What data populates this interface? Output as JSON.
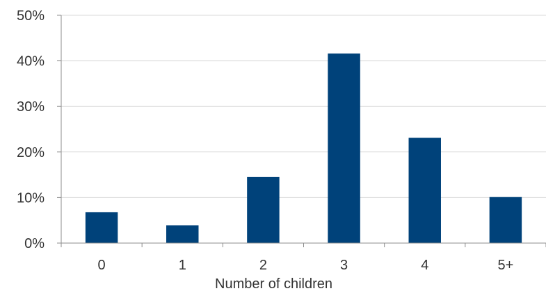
{
  "chart_data": {
    "type": "bar",
    "title": "",
    "xlabel": "Number of children",
    "ylabel": "",
    "categories": [
      "0",
      "1",
      "2",
      "3",
      "4",
      "5+"
    ],
    "values": [
      6.8,
      3.9,
      14.5,
      41.6,
      23.1,
      10.1
    ],
    "value_unit": "percent",
    "ylim": [
      0,
      50
    ],
    "yticks": [
      0,
      10,
      20,
      30,
      40,
      50
    ],
    "ytick_labels": [
      "0%",
      "10%",
      "20%",
      "30%",
      "40%",
      "50%"
    ],
    "grid": true,
    "legend": "none",
    "colors": {
      "bar": "#00427a",
      "grid": "#d9d9d9",
      "axis": "#8c8c8c",
      "text": "#333333"
    }
  }
}
